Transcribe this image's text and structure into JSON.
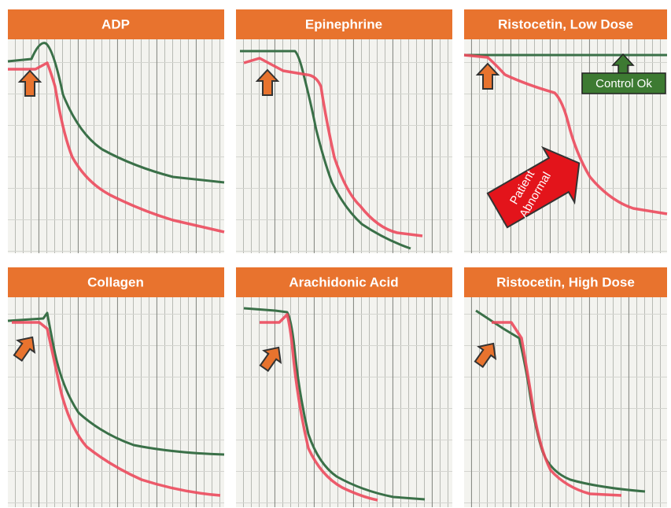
{
  "panels": [
    {
      "title": "ADP"
    },
    {
      "title": "Epinephrine"
    },
    {
      "title": "Ristocetin, Low Dose"
    },
    {
      "title": "Collagen"
    },
    {
      "title": "Arachidonic Acid"
    },
    {
      "title": "Ristocetin, High Dose"
    }
  ],
  "annotations": {
    "control": "Control Ok",
    "patient": [
      "Patient",
      "Abnormal"
    ]
  }
}
